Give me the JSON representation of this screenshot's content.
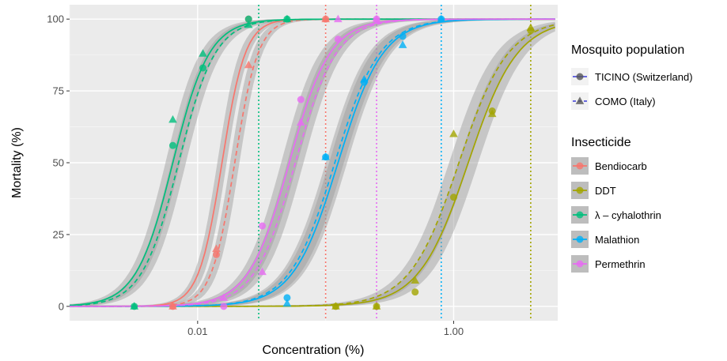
{
  "chart_data": {
    "type": "line",
    "title": "",
    "xlabel": "Concentration (%)",
    "ylabel": "Mortality (%)",
    "x_scale": "log10",
    "xlim": [
      0.001,
      6.5
    ],
    "ylim": [
      -5,
      105
    ],
    "x_ticks": [
      {
        "value": 0.01,
        "label": "0.01"
      },
      {
        "value": 1.0,
        "label": "1.00"
      }
    ],
    "y_ticks": [
      {
        "value": 0,
        "label": "0"
      },
      {
        "value": 25,
        "label": "25"
      },
      {
        "value": 50,
        "label": "50"
      },
      {
        "value": 75,
        "label": "75"
      },
      {
        "value": 100,
        "label": "100"
      }
    ],
    "grid": true,
    "legend_position": "right",
    "legend": {
      "population": {
        "title": "Mosquito population",
        "entries": [
          {
            "key": "TICINO",
            "label": "TICINO (Switzerland)",
            "shape": "circle",
            "linestyle": "solid"
          },
          {
            "key": "COMO",
            "label": "COMO (Italy)",
            "shape": "triangle",
            "linestyle": "dashed"
          }
        ]
      },
      "insecticide": {
        "title": "Insecticide",
        "entries": [
          {
            "key": "Bendiocarb",
            "label": "Bendiocarb",
            "color": "#F8766D"
          },
          {
            "key": "DDT",
            "label": "DDT",
            "color": "#A3A500"
          },
          {
            "key": "Lambda",
            "label": "λ – cyhalothrin",
            "color": "#00BF7D"
          },
          {
            "key": "Malathion",
            "label": "Malathion",
            "color": "#00B0F6"
          },
          {
            "key": "Permethrin",
            "label": "Permethrin",
            "color": "#E76BF3"
          }
        ]
      }
    },
    "curve_range": [
      0.001,
      6.2
    ],
    "series": [
      {
        "insecticide": "Bendiocarb",
        "population": "TICINO",
        "color": "#F8766D",
        "lc50": 0.0155,
        "slope": 11.0
      },
      {
        "insecticide": "Bendiocarb",
        "population": "COMO",
        "color": "#F8766D",
        "lc50": 0.0195,
        "slope": 11.0
      },
      {
        "insecticide": "DDT",
        "population": "TICINO",
        "color": "#A3A500",
        "lc50": 1.3,
        "slope": 5.2
      },
      {
        "insecticide": "DDT",
        "population": "COMO",
        "color": "#A3A500",
        "lc50": 1.1,
        "slope": 5.2
      },
      {
        "insecticide": "Lambda",
        "population": "TICINO",
        "color": "#00BF7D",
        "lc50": 0.0064,
        "slope": 7.0
      },
      {
        "insecticide": "Lambda",
        "population": "COMO",
        "color": "#00BF7D",
        "lc50": 0.0071,
        "slope": 7.0
      },
      {
        "insecticide": "Malathion",
        "population": "TICINO",
        "color": "#00B0F6",
        "lc50": 0.125,
        "slope": 5.7
      },
      {
        "insecticide": "Malathion",
        "population": "COMO",
        "color": "#00B0F6",
        "lc50": 0.118,
        "slope": 5.7
      },
      {
        "insecticide": "Permethrin",
        "population": "TICINO",
        "color": "#E76BF3",
        "lc50": 0.052,
        "slope": 6.3
      },
      {
        "insecticide": "Permethrin",
        "population": "COMO",
        "color": "#E76BF3",
        "lc50": 0.058,
        "slope": 6.3
      }
    ],
    "reference_lines": [
      {
        "insecticide": "Bendiocarb",
        "x": 0.1,
        "color": "#F8766D"
      },
      {
        "insecticide": "DDT",
        "x": 4.0,
        "color": "#A3A500"
      },
      {
        "insecticide": "Lambda",
        "x": 0.03,
        "color": "#00BF7D"
      },
      {
        "insecticide": "Malathion",
        "x": 0.8,
        "color": "#00B0F6"
      },
      {
        "insecticide": "Permethrin",
        "x": 0.25,
        "color": "#E76BF3"
      }
    ],
    "points": [
      {
        "insecticide": "Bendiocarb",
        "population": "TICINO",
        "x": 0.0064,
        "y": 0
      },
      {
        "insecticide": "Bendiocarb",
        "population": "TICINO",
        "x": 0.014,
        "y": 18
      },
      {
        "insecticide": "Bendiocarb",
        "population": "TICINO",
        "x": 0.025,
        "y": 100
      },
      {
        "insecticide": "Bendiocarb",
        "population": "TICINO",
        "x": 0.1,
        "y": 100
      },
      {
        "insecticide": "Bendiocarb",
        "population": "COMO",
        "x": 0.0064,
        "y": 0
      },
      {
        "insecticide": "Bendiocarb",
        "population": "COMO",
        "x": 0.014,
        "y": 20
      },
      {
        "insecticide": "Bendiocarb",
        "population": "COMO",
        "x": 0.025,
        "y": 84
      },
      {
        "insecticide": "Bendiocarb",
        "population": "COMO",
        "x": 0.1,
        "y": 100
      },
      {
        "insecticide": "DDT",
        "population": "TICINO",
        "x": 0.12,
        "y": 0
      },
      {
        "insecticide": "DDT",
        "population": "TICINO",
        "x": 0.25,
        "y": 0
      },
      {
        "insecticide": "DDT",
        "population": "TICINO",
        "x": 0.5,
        "y": 5
      },
      {
        "insecticide": "DDT",
        "population": "TICINO",
        "x": 1.0,
        "y": 38
      },
      {
        "insecticide": "DDT",
        "population": "TICINO",
        "x": 2.0,
        "y": 68
      },
      {
        "insecticide": "DDT",
        "population": "TICINO",
        "x": 4.0,
        "y": 96
      },
      {
        "insecticide": "DDT",
        "population": "COMO",
        "x": 0.12,
        "y": 0
      },
      {
        "insecticide": "DDT",
        "population": "COMO",
        "x": 0.25,
        "y": 0
      },
      {
        "insecticide": "DDT",
        "population": "COMO",
        "x": 0.5,
        "y": 9
      },
      {
        "insecticide": "DDT",
        "population": "COMO",
        "x": 1.0,
        "y": 60
      },
      {
        "insecticide": "DDT",
        "population": "COMO",
        "x": 2.0,
        "y": 67
      },
      {
        "insecticide": "DDT",
        "population": "COMO",
        "x": 4.0,
        "y": 97
      },
      {
        "insecticide": "Lambda",
        "population": "TICINO",
        "x": 0.0032,
        "y": 0
      },
      {
        "insecticide": "Lambda",
        "population": "TICINO",
        "x": 0.0064,
        "y": 56
      },
      {
        "insecticide": "Lambda",
        "population": "TICINO",
        "x": 0.011,
        "y": 83
      },
      {
        "insecticide": "Lambda",
        "population": "TICINO",
        "x": 0.025,
        "y": 100
      },
      {
        "insecticide": "Lambda",
        "population": "TICINO",
        "x": 0.05,
        "y": 100
      },
      {
        "insecticide": "Lambda",
        "population": "COMO",
        "x": 0.0032,
        "y": 0
      },
      {
        "insecticide": "Lambda",
        "population": "COMO",
        "x": 0.0064,
        "y": 65
      },
      {
        "insecticide": "Lambda",
        "population": "COMO",
        "x": 0.011,
        "y": 88
      },
      {
        "insecticide": "Lambda",
        "population": "COMO",
        "x": 0.025,
        "y": 98
      },
      {
        "insecticide": "Lambda",
        "population": "COMO",
        "x": 0.05,
        "y": 100
      },
      {
        "insecticide": "Malathion",
        "population": "TICINO",
        "x": 0.05,
        "y": 3
      },
      {
        "insecticide": "Malathion",
        "population": "TICINO",
        "x": 0.1,
        "y": 52
      },
      {
        "insecticide": "Malathion",
        "population": "TICINO",
        "x": 0.2,
        "y": 78
      },
      {
        "insecticide": "Malathion",
        "population": "TICINO",
        "x": 0.4,
        "y": 94
      },
      {
        "insecticide": "Malathion",
        "population": "TICINO",
        "x": 0.8,
        "y": 100
      },
      {
        "insecticide": "Malathion",
        "population": "COMO",
        "x": 0.05,
        "y": 1
      },
      {
        "insecticide": "Malathion",
        "population": "COMO",
        "x": 0.1,
        "y": 52
      },
      {
        "insecticide": "Malathion",
        "population": "COMO",
        "x": 0.2,
        "y": 79
      },
      {
        "insecticide": "Malathion",
        "population": "COMO",
        "x": 0.4,
        "y": 91
      },
      {
        "insecticide": "Malathion",
        "population": "COMO",
        "x": 0.8,
        "y": 100
      },
      {
        "insecticide": "Permethrin",
        "population": "TICINO",
        "x": 0.016,
        "y": 0
      },
      {
        "insecticide": "Permethrin",
        "population": "TICINO",
        "x": 0.032,
        "y": 28
      },
      {
        "insecticide": "Permethrin",
        "population": "TICINO",
        "x": 0.064,
        "y": 72
      },
      {
        "insecticide": "Permethrin",
        "population": "TICINO",
        "x": 0.125,
        "y": 93
      },
      {
        "insecticide": "Permethrin",
        "population": "TICINO",
        "x": 0.25,
        "y": 100
      },
      {
        "insecticide": "Permethrin",
        "population": "COMO",
        "x": 0.016,
        "y": 3
      },
      {
        "insecticide": "Permethrin",
        "population": "COMO",
        "x": 0.032,
        "y": 12
      },
      {
        "insecticide": "Permethrin",
        "population": "COMO",
        "x": 0.064,
        "y": 64
      },
      {
        "insecticide": "Permethrin",
        "population": "COMO",
        "x": 0.125,
        "y": 100
      },
      {
        "insecticide": "Permethrin",
        "population": "COMO",
        "x": 0.25,
        "y": 100
      }
    ]
  }
}
